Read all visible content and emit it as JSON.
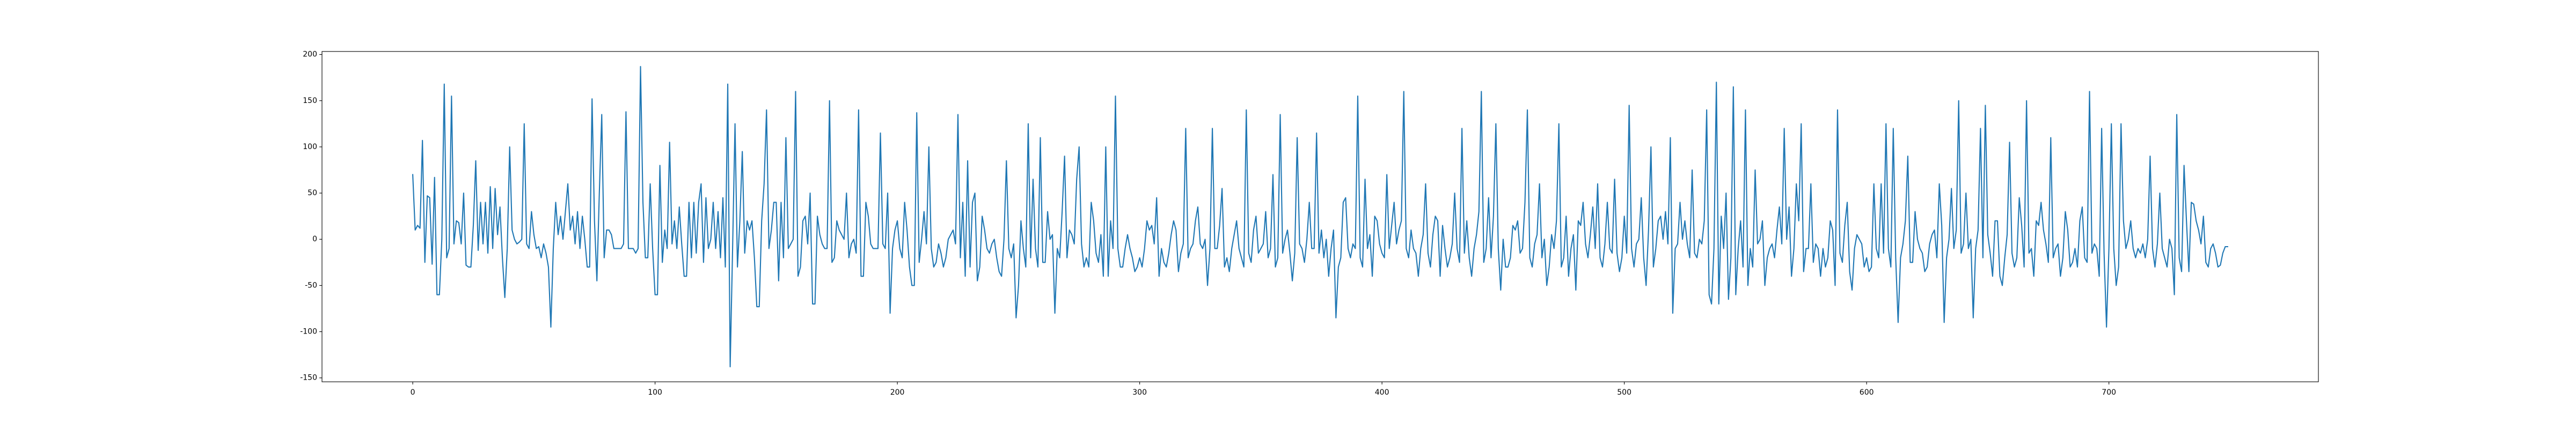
{
  "chart_data": {
    "type": "line",
    "color": "#1f77b4",
    "xlim": [
      -37.45,
      786.45
    ],
    "xticks": [
      0,
      100,
      200,
      300,
      400,
      500,
      600,
      700
    ],
    "ylim": [
      -154.25,
      203.25
    ],
    "yticks": [
      -150,
      -100,
      -50,
      0,
      50,
      100,
      150,
      200
    ],
    "values": [
      70,
      10,
      15,
      12,
      107,
      -25,
      47,
      45,
      -27,
      67,
      -60,
      -60,
      0,
      168,
      -20,
      -10,
      155,
      -5,
      20,
      18,
      -5,
      50,
      -28,
      -30,
      -30,
      15,
      85,
      -12,
      40,
      -5,
      40,
      -15,
      57,
      -10,
      55,
      5,
      35,
      -20,
      -63,
      -10,
      100,
      10,
      0,
      -5,
      -3,
      0,
      125,
      -5,
      -10,
      30,
      5,
      -10,
      -8,
      -20,
      -5,
      -15,
      -30,
      -95,
      -10,
      40,
      5,
      25,
      0,
      30,
      60,
      10,
      25,
      -5,
      30,
      -10,
      25,
      0,
      -30,
      -30,
      152,
      20,
      -45,
      50,
      135,
      -20,
      10,
      10,
      5,
      -10,
      -10,
      -10,
      -10,
      -5,
      138,
      -10,
      -10,
      -10,
      -15,
      -10,
      187,
      40,
      -20,
      -20,
      60,
      -10,
      -60,
      -60,
      80,
      -25,
      10,
      -10,
      105,
      -5,
      20,
      -10,
      35,
      -5,
      -40,
      -40,
      40,
      -20,
      40,
      -15,
      40,
      60,
      -25,
      45,
      -10,
      0,
      40,
      -10,
      30,
      -20,
      45,
      -30,
      168,
      -138,
      -10,
      125,
      -30,
      20,
      95,
      -15,
      20,
      10,
      20,
      -20,
      -73,
      -73,
      20,
      60,
      140,
      -10,
      10,
      40,
      40,
      -45,
      40,
      -20,
      110,
      -10,
      -5,
      0,
      160,
      -40,
      -30,
      20,
      25,
      -5,
      50,
      -70,
      -70,
      25,
      5,
      -5,
      -10,
      -10,
      150,
      -25,
      -20,
      20,
      10,
      5,
      0,
      50,
      -20,
      -5,
      0,
      -15,
      140,
      -40,
      -40,
      40,
      25,
      -5,
      -10,
      -10,
      -10,
      115,
      -5,
      -10,
      50,
      -80,
      -10,
      10,
      20,
      -10,
      -20,
      40,
      10,
      -30,
      -50,
      -50,
      137,
      -25,
      0,
      30,
      -5,
      100,
      -10,
      -30,
      -25,
      -5,
      -15,
      -30,
      -20,
      0,
      5,
      10,
      -5,
      135,
      -20,
      40,
      -40,
      85,
      -30,
      40,
      50,
      -45,
      -30,
      25,
      10,
      -10,
      -15,
      -5,
      0,
      -20,
      -35,
      -40,
      0,
      85,
      -10,
      -20,
      -5,
      -85,
      -50,
      20,
      -10,
      -30,
      125,
      -20,
      65,
      -10,
      -30,
      110,
      -25,
      -25,
      30,
      0,
      5,
      -80,
      -10,
      -20,
      30,
      90,
      -20,
      10,
      5,
      -5,
      65,
      100,
      -5,
      -30,
      -20,
      -30,
      40,
      20,
      -15,
      -25,
      5,
      -40,
      100,
      -40,
      20,
      -10,
      155,
      -10,
      -30,
      -30,
      -10,
      5,
      -10,
      -20,
      -35,
      -30,
      -20,
      -30,
      -10,
      20,
      10,
      15,
      -5,
      45,
      -40,
      -10,
      -25,
      -30,
      -15,
      5,
      20,
      10,
      -35,
      -15,
      -5,
      120,
      -20,
      -10,
      -5,
      20,
      35,
      -5,
      -10,
      0,
      -50,
      -10,
      120,
      -10,
      -10,
      15,
      55,
      -30,
      -20,
      -35,
      -10,
      5,
      20,
      -10,
      -20,
      -30,
      140,
      -15,
      -25,
      10,
      25,
      -15,
      -10,
      -5,
      30,
      -20,
      -10,
      70,
      -30,
      -20,
      135,
      -15,
      0,
      10,
      -15,
      -45,
      -15,
      110,
      -5,
      -10,
      -25,
      0,
      40,
      -10,
      -10,
      115,
      -15,
      10,
      -20,
      0,
      -40,
      -10,
      10,
      -85,
      -30,
      -20,
      40,
      45,
      -10,
      -20,
      -5,
      -10,
      155,
      -20,
      -30,
      65,
      -10,
      5,
      -40,
      25,
      20,
      -5,
      -15,
      -20,
      70,
      -10,
      15,
      40,
      -5,
      10,
      20,
      160,
      -10,
      -20,
      10,
      -10,
      -15,
      -40,
      -10,
      5,
      60,
      -15,
      -30,
      5,
      25,
      20,
      -40,
      15,
      -10,
      -30,
      -20,
      -5,
      50,
      -10,
      -25,
      120,
      -15,
      20,
      -20,
      -40,
      -10,
      5,
      30,
      160,
      -25,
      -10,
      45,
      -20,
      25,
      125,
      -10,
      -55,
      0,
      -30,
      -30,
      -20,
      15,
      10,
      20,
      -15,
      -10,
      40,
      140,
      -20,
      -30,
      -5,
      5,
      60,
      -20,
      0,
      -50,
      -30,
      5,
      -10,
      20,
      125,
      -30,
      -20,
      25,
      -40,
      -10,
      5,
      -55,
      20,
      15,
      40,
      -5,
      -20,
      5,
      35,
      -10,
      60,
      -20,
      -30,
      -5,
      40,
      -10,
      -15,
      65,
      -15,
      -35,
      -20,
      25,
      -15,
      145,
      -10,
      -30,
      -5,
      0,
      45,
      -20,
      -50,
      10,
      100,
      -30,
      -10,
      20,
      25,
      0,
      30,
      -5,
      110,
      -80,
      -10,
      -5,
      40,
      0,
      20,
      -5,
      -20,
      75,
      -15,
      -20,
      0,
      -5,
      20,
      140,
      -60,
      -70,
      -10,
      170,
      -70,
      25,
      -10,
      50,
      -65,
      -20,
      165,
      -60,
      -10,
      20,
      -30,
      140,
      -50,
      -10,
      -30,
      75,
      -5,
      0,
      20,
      -50,
      -20,
      -10,
      -5,
      -20,
      10,
      35,
      -5,
      120,
      0,
      35,
      -40,
      -10,
      60,
      20,
      125,
      -35,
      -10,
      -10,
      60,
      -25,
      -5,
      -10,
      -40,
      -10,
      -30,
      -20,
      20,
      10,
      -50,
      140,
      -15,
      -25,
      15,
      40,
      -35,
      -55,
      -10,
      5,
      0,
      -5,
      -30,
      -20,
      -35,
      -30,
      60,
      -10,
      -20,
      60,
      -15,
      125,
      -10,
      -30,
      120,
      -20,
      -90,
      -20,
      -5,
      20,
      90,
      -25,
      -25,
      30,
      0,
      -10,
      -15,
      -35,
      -30,
      -5,
      5,
      10,
      -20,
      60,
      15,
      -90,
      -20,
      0,
      55,
      -10,
      10,
      150,
      -15,
      -5,
      50,
      -10,
      0,
      -85,
      -10,
      10,
      120,
      -20,
      145,
      5,
      -15,
      -40,
      20,
      20,
      -40,
      -50,
      -20,
      5,
      105,
      -15,
      -30,
      -20,
      45,
      15,
      -30,
      150,
      -15,
      -10,
      -40,
      20,
      15,
      40,
      10,
      -5,
      -25,
      110,
      -20,
      -10,
      -5,
      -40,
      -20,
      30,
      10,
      -30,
      -25,
      -10,
      -30,
      20,
      35,
      -20,
      -25,
      160,
      -15,
      -5,
      -10,
      -40,
      120,
      -15,
      -95,
      -10,
      125,
      -10,
      -50,
      -30,
      125,
      20,
      -10,
      0,
      20,
      -10,
      -20,
      -10,
      -15,
      -5,
      -20,
      0,
      90,
      -10,
      -30,
      -5,
      50,
      -10,
      -20,
      -30,
      0,
      -10,
      -60,
      135,
      -20,
      -35,
      80,
      20,
      -35,
      40,
      38,
      20,
      10,
      -5,
      25,
      -25,
      -30,
      -10,
      -5,
      -15,
      -30,
      -28,
      -15,
      -8,
      -8
    ]
  }
}
